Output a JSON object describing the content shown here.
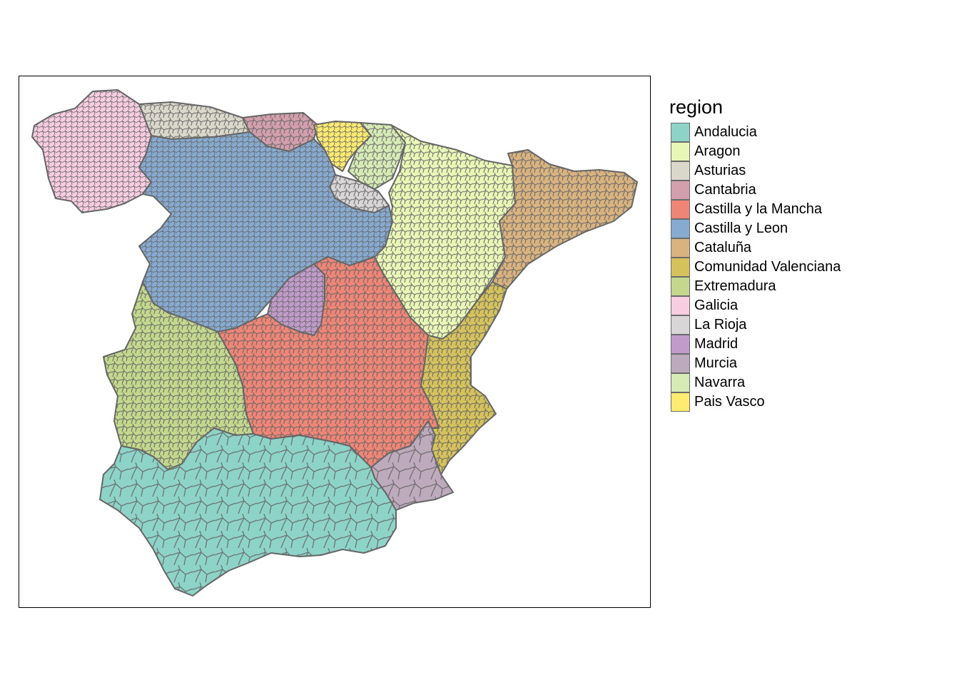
{
  "legend": {
    "title": "region",
    "items": [
      {
        "label": "Andalucia",
        "color": "#8DD3C7"
      },
      {
        "label": "Aragon",
        "color": "#E8F6B6"
      },
      {
        "label": "Asturias",
        "color": "#DAD8CB"
      },
      {
        "label": "Cantabria",
        "color": "#D39FAD"
      },
      {
        "label": "Castilla y la Mancha",
        "color": "#EE8576"
      },
      {
        "label": "Castilla y Leon",
        "color": "#86AAD0"
      },
      {
        "label": "Cataluña",
        "color": "#D8B27F"
      },
      {
        "label": "Comunidad Valenciana",
        "color": "#D5C25C"
      },
      {
        "label": "Extremadura",
        "color": "#C3D88D"
      },
      {
        "label": "Galicia",
        "color": "#F8CDE1"
      },
      {
        "label": "La Rioja",
        "color": "#D9D6D7"
      },
      {
        "label": "Madrid",
        "color": "#C19CCA"
      },
      {
        "label": "Murcia",
        "color": "#BDAABD"
      },
      {
        "label": "Navarra",
        "color": "#D5EAB5"
      },
      {
        "label": "Pais Vasco",
        "color": "#FFEB6F"
      }
    ]
  },
  "map": {
    "border_color": "#666666",
    "frame_color": "#000000"
  }
}
